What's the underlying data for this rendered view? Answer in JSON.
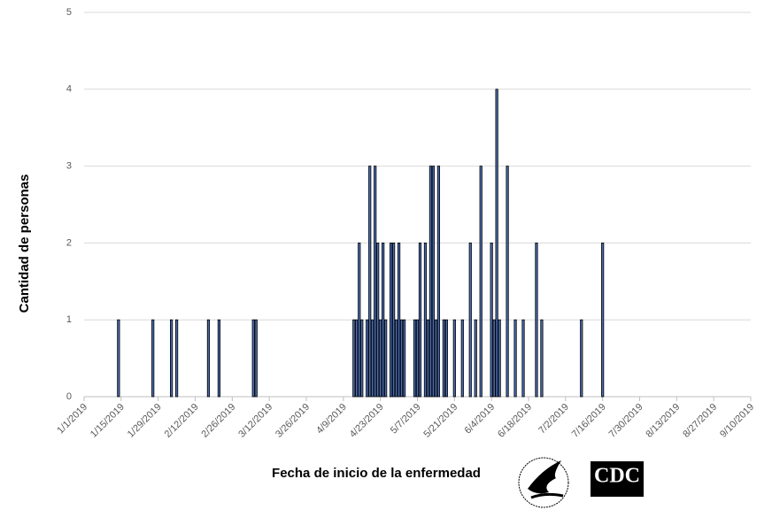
{
  "chart_data": {
    "type": "bar",
    "x_label": "Fecha de inicio de la enfermedad",
    "y_label": "Cantidad de personas",
    "x": [
      "1/14/2019",
      "1/27/2019",
      "2/3/2019",
      "2/5/2019",
      "2/17/2019",
      "2/21/2019",
      "3/6/2019",
      "3/7/2019",
      "4/13/2019",
      "4/14/2019",
      "4/15/2019",
      "4/16/2019",
      "4/18/2019",
      "4/19/2019",
      "4/20/2019",
      "4/21/2019",
      "4/22/2019",
      "4/23/2019",
      "4/24/2019",
      "4/25/2019",
      "4/27/2019",
      "4/28/2019",
      "4/29/2019",
      "4/30/2019",
      "5/1/2019",
      "5/2/2019",
      "5/6/2019",
      "5/7/2019",
      "5/8/2019",
      "5/10/2019",
      "5/11/2019",
      "5/12/2019",
      "5/13/2019",
      "5/14/2019",
      "5/15/2019",
      "5/17/2019",
      "5/18/2019",
      "5/21/2019",
      "5/24/2019",
      "5/27/2019",
      "5/29/2019",
      "5/31/2019",
      "6/4/2019",
      "6/5/2019",
      "6/6/2019",
      "6/7/2019",
      "6/10/2019",
      "6/13/2019",
      "6/16/2019",
      "6/21/2019",
      "6/23/2019",
      "7/8/2019",
      "7/16/2019"
    ],
    "values": [
      1,
      1,
      1,
      1,
      1,
      1,
      1,
      1,
      1,
      1,
      2,
      1,
      1,
      3,
      1,
      3,
      2,
      1,
      2,
      1,
      2,
      2,
      1,
      2,
      1,
      1,
      1,
      1,
      2,
      2,
      1,
      3,
      3,
      1,
      3,
      1,
      1,
      1,
      1,
      2,
      1,
      3,
      2,
      1,
      4,
      1,
      3,
      1,
      1,
      2,
      1,
      1,
      2
    ],
    "color": "#4a6cb0",
    "xlim": [
      "1/1/2019",
      "9/10/2019"
    ],
    "xticks": [
      "1/1/2019",
      "1/15/2019",
      "1/29/2019",
      "2/12/2019",
      "2/26/2019",
      "3/12/2019",
      "3/26/2019",
      "4/9/2019",
      "4/23/2019",
      "5/7/2019",
      "5/21/2019",
      "6/4/2019",
      "6/18/2019",
      "7/2/2019",
      "7/16/2019",
      "7/30/2019",
      "8/13/2019",
      "8/27/2019",
      "9/10/2019"
    ],
    "ylim": [
      0,
      5
    ],
    "yticks": [
      0,
      1,
      2,
      3,
      4,
      5
    ],
    "grid": true
  },
  "logos": {
    "cdc": "CDC"
  }
}
